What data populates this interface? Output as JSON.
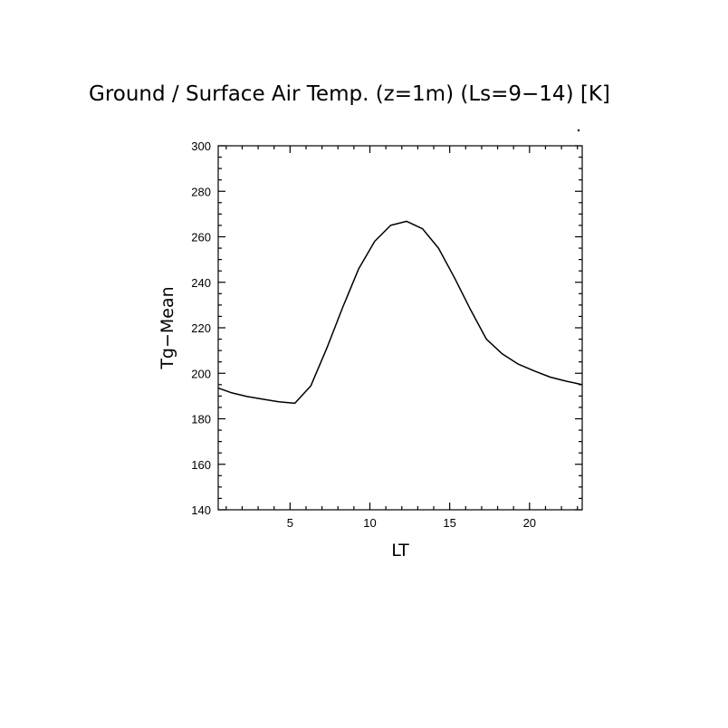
{
  "chart_data": {
    "type": "line",
    "title": "Ground / Surface Air Temp. (z=1m) (Ls=9−14) [K]",
    "xlabel": "LT",
    "ylabel": "Tg−Mean",
    "xlim": [
      0.5,
      23.3
    ],
    "ylim": [
      140,
      300
    ],
    "x_ticks": [
      5,
      10,
      15,
      20
    ],
    "y_ticks": [
      140,
      160,
      180,
      200,
      220,
      240,
      260,
      280,
      300
    ],
    "grid": false,
    "series": [
      {
        "x": [
          0.5,
          1.3,
          2.3,
          3.3,
          4.3,
          5.3,
          6.3,
          7.3,
          8.3,
          9.3,
          10.3,
          11.3,
          12.3,
          13.3,
          14.3,
          15.3,
          16.3,
          17.3,
          18.3,
          19.3,
          20.3,
          21.3,
          22.3,
          23.3
        ],
        "y": [
          193.5,
          191.5,
          189.8,
          188.6,
          187.5,
          186.8,
          194.5,
          211,
          229,
          246,
          258,
          265,
          266.8,
          263.5,
          255,
          242,
          228,
          215,
          208.5,
          204,
          201,
          198.3,
          196.5,
          195
        ]
      }
    ]
  }
}
